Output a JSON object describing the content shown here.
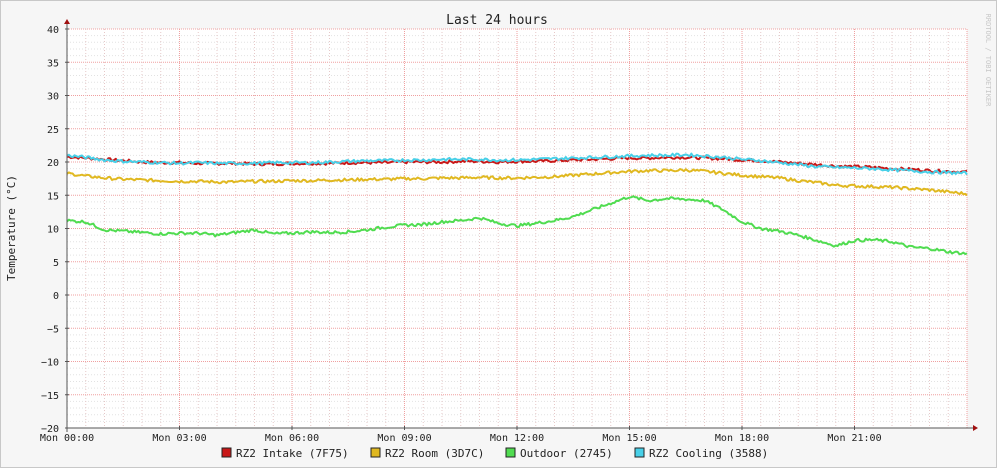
{
  "chart_data": {
    "type": "line",
    "title": "Last 24 hours",
    "ylabel": "Temperature (°C)",
    "xlabel": "",
    "watermark": "RRDTOOL / TOBI OETIKER",
    "ylim": [
      -20,
      40
    ],
    "y_ticks": [
      40,
      35,
      30,
      25,
      20,
      15,
      10,
      5,
      0,
      -5,
      -10,
      -15,
      -20
    ],
    "y_tick_labels": [
      "40",
      "35",
      "30",
      "25",
      "20",
      "15",
      "10",
      "5",
      "0",
      "−5",
      "−10",
      "−15",
      "−20"
    ],
    "xlim_hours": [
      0,
      24
    ],
    "x_ticks": [
      {
        "hour": 0,
        "label": "Mon 00:00"
      },
      {
        "hour": 3,
        "label": "Mon 03:00"
      },
      {
        "hour": 6,
        "label": "Mon 06:00"
      },
      {
        "hour": 9,
        "label": "Mon 09:00"
      },
      {
        "hour": 12,
        "label": "Mon 12:00"
      },
      {
        "hour": 15,
        "label": "Mon 15:00"
      },
      {
        "hour": 18,
        "label": "Mon 18:00"
      },
      {
        "hour": 21,
        "label": "Mon 21:00"
      }
    ],
    "grid": true,
    "legend_position": "bottom",
    "x": [
      0,
      0.5,
      1,
      1.5,
      2,
      2.5,
      3,
      3.5,
      4,
      4.5,
      5,
      5.5,
      6,
      6.5,
      7,
      7.5,
      8,
      8.5,
      9,
      9.5,
      10,
      10.5,
      11,
      11.5,
      12,
      12.5,
      13,
      13.5,
      14,
      14.5,
      15,
      15.5,
      16,
      16.5,
      17,
      17.5,
      18,
      18.5,
      19,
      19.5,
      20,
      20.5,
      21,
      21.5,
      22,
      22.5,
      23,
      23.5,
      24
    ],
    "series": [
      {
        "name": "RZ2 Intake (7F75)",
        "color": "#c81818",
        "values": [
          20.8,
          20.6,
          20.4,
          20.2,
          20.0,
          19.9,
          19.9,
          19.8,
          19.8,
          19.8,
          19.7,
          19.7,
          19.8,
          19.8,
          19.8,
          19.9,
          19.9,
          19.9,
          20.0,
          20.0,
          20.0,
          20.1,
          20.1,
          20.0,
          20.1,
          20.1,
          20.2,
          20.3,
          20.4,
          20.5,
          20.6,
          20.6,
          20.7,
          20.7,
          20.6,
          20.5,
          20.3,
          20.2,
          20.0,
          19.8,
          19.6,
          19.4,
          19.3,
          19.2,
          19.0,
          18.9,
          18.7,
          18.6,
          18.5
        ]
      },
      {
        "name": "RZ2 Room (3D7C)",
        "color": "#e0b820",
        "values": [
          18.3,
          17.9,
          17.6,
          17.4,
          17.3,
          17.2,
          17.1,
          17.1,
          17.0,
          17.0,
          17.1,
          17.1,
          17.2,
          17.2,
          17.3,
          17.3,
          17.4,
          17.4,
          17.5,
          17.5,
          17.6,
          17.6,
          17.7,
          17.6,
          17.6,
          17.7,
          17.8,
          18.0,
          18.2,
          18.4,
          18.6,
          18.7,
          18.7,
          18.8,
          18.6,
          18.3,
          18.0,
          17.8,
          17.6,
          17.2,
          16.9,
          16.5,
          16.4,
          16.3,
          16.2,
          16.0,
          15.8,
          15.5,
          15.2
        ]
      },
      {
        "name": "Outdoor (2745)",
        "color": "#50dc50",
        "values": [
          11.2,
          11.0,
          9.8,
          9.6,
          9.4,
          9.2,
          9.3,
          9.3,
          9.0,
          9.4,
          9.8,
          9.2,
          9.3,
          9.5,
          9.4,
          9.5,
          9.8,
          10.2,
          10.5,
          10.6,
          11.0,
          11.2,
          11.6,
          10.8,
          10.4,
          10.8,
          11.2,
          11.8,
          12.8,
          13.8,
          14.8,
          14.2,
          14.5,
          14.4,
          14.2,
          12.8,
          11.0,
          10.0,
          9.6,
          9.0,
          8.2,
          7.4,
          8.2,
          8.3,
          8.0,
          7.2,
          7.0,
          6.5,
          6.2
        ]
      },
      {
        "name": "RZ2 Cooling (3588)",
        "color": "#48d0e8",
        "values": [
          21.0,
          20.7,
          20.3,
          20.1,
          20.0,
          19.9,
          19.8,
          19.9,
          19.8,
          19.8,
          19.8,
          19.9,
          19.9,
          19.9,
          20.0,
          20.1,
          20.2,
          20.2,
          20.3,
          20.3,
          20.4,
          20.4,
          20.4,
          20.3,
          20.3,
          20.4,
          20.5,
          20.6,
          20.7,
          20.8,
          20.9,
          21.0,
          21.0,
          21.1,
          20.9,
          20.7,
          20.4,
          20.2,
          19.9,
          19.6,
          19.3,
          19.2,
          19.1,
          19.0,
          18.8,
          18.7,
          18.5,
          18.4,
          18.3
        ]
      }
    ]
  }
}
